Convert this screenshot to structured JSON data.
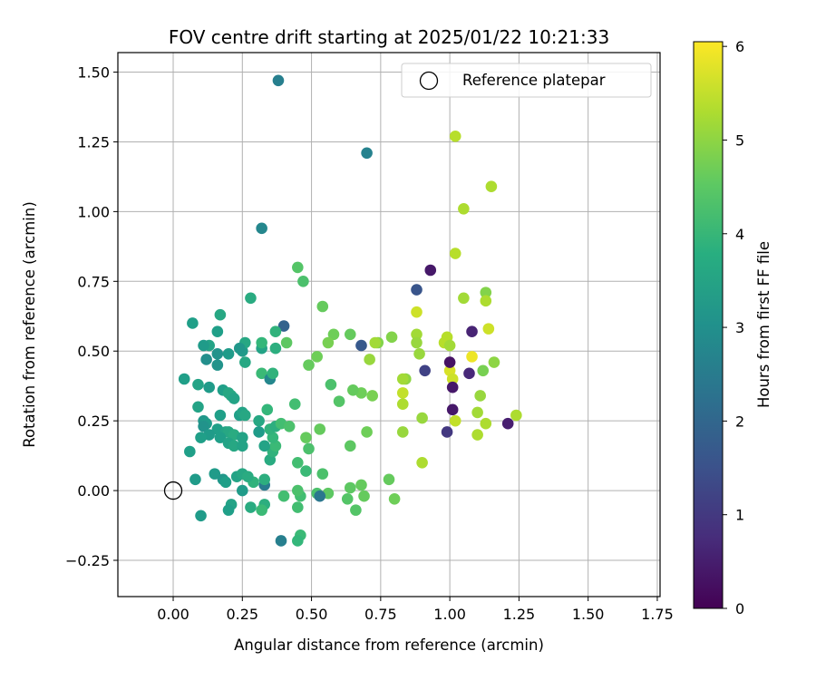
{
  "chart_data": {
    "type": "scatter",
    "title": "FOV centre drift starting at 2025/01/22 10:21:33",
    "xlabel": "Angular distance from reference (arcmin)",
    "ylabel": "Rotation from reference (arcmin)",
    "xlim": [
      -0.2,
      1.76
    ],
    "ylim": [
      -0.38,
      1.57
    ],
    "xticks": [
      0.0,
      0.25,
      0.5,
      0.75,
      1.0,
      1.25,
      1.5,
      1.75
    ],
    "xtick_labels": [
      "0.00",
      "0.25",
      "0.50",
      "0.75",
      "1.00",
      "1.25",
      "1.50",
      "1.75"
    ],
    "yticks": [
      -0.25,
      0.0,
      0.25,
      0.5,
      0.75,
      1.0,
      1.25,
      1.5
    ],
    "ytick_labels": [
      "−0.25",
      "0.00",
      "0.25",
      "0.50",
      "0.75",
      "1.00",
      "1.25",
      "1.50"
    ],
    "grid": true,
    "legend": {
      "position": "top-right",
      "entries": [
        "Reference platepar"
      ]
    },
    "reference_point": {
      "x": 0.0,
      "y": 0.0
    },
    "colorbar": {
      "label": "Hours from first FF file",
      "colormap": "viridis",
      "range": [
        0,
        6.05
      ],
      "ticks": [
        0,
        1,
        2,
        3,
        4,
        5,
        6
      ],
      "tick_labels": [
        "0",
        "1",
        "2",
        "3",
        "4",
        "5",
        "6"
      ]
    },
    "points": [
      {
        "x": 0.38,
        "y": 1.47,
        "h": 2.6
      },
      {
        "x": 0.7,
        "y": 1.21,
        "h": 2.7
      },
      {
        "x": 0.32,
        "y": 0.94,
        "h": 2.8
      },
      {
        "x": 0.88,
        "y": 0.72,
        "h": 1.6
      },
      {
        "x": 0.93,
        "y": 0.79,
        "h": 0.4
      },
      {
        "x": 0.4,
        "y": 0.59,
        "h": 1.9
      },
      {
        "x": 0.68,
        "y": 0.52,
        "h": 1.7
      },
      {
        "x": 1.02,
        "y": 1.27,
        "h": 5.4
      },
      {
        "x": 1.15,
        "y": 1.09,
        "h": 5.3
      },
      {
        "x": 1.05,
        "y": 1.01,
        "h": 5.3
      },
      {
        "x": 1.02,
        "y": 0.85,
        "h": 5.4
      },
      {
        "x": 1.05,
        "y": 0.69,
        "h": 5.2
      },
      {
        "x": 1.13,
        "y": 0.71,
        "h": 4.9
      },
      {
        "x": 1.13,
        "y": 0.68,
        "h": 5.3
      },
      {
        "x": 1.14,
        "y": 0.58,
        "h": 5.6
      },
      {
        "x": 1.16,
        "y": 0.46,
        "h": 5.0
      },
      {
        "x": 1.12,
        "y": 0.43,
        "h": 4.8
      },
      {
        "x": 1.11,
        "y": 0.34,
        "h": 5.1
      },
      {
        "x": 1.08,
        "y": 0.48,
        "h": 5.9
      },
      {
        "x": 1.07,
        "y": 0.42,
        "h": 0.7
      },
      {
        "x": 1.08,
        "y": 0.57,
        "h": 0.6
      },
      {
        "x": 0.99,
        "y": 0.55,
        "h": 5.4
      },
      {
        "x": 0.98,
        "y": 0.53,
        "h": 5.4
      },
      {
        "x": 1.0,
        "y": 0.52,
        "h": 5.2
      },
      {
        "x": 1.0,
        "y": 0.43,
        "h": 5.7
      },
      {
        "x": 1.01,
        "y": 0.4,
        "h": 5.6
      },
      {
        "x": 1.0,
        "y": 0.46,
        "h": 0.3
      },
      {
        "x": 1.01,
        "y": 0.37,
        "h": 0.4
      },
      {
        "x": 1.01,
        "y": 0.29,
        "h": 0.4
      },
      {
        "x": 1.02,
        "y": 0.25,
        "h": 5.5
      },
      {
        "x": 1.1,
        "y": 0.28,
        "h": 5.2
      },
      {
        "x": 1.13,
        "y": 0.24,
        "h": 5.3
      },
      {
        "x": 1.1,
        "y": 0.2,
        "h": 5.3
      },
      {
        "x": 0.99,
        "y": 0.21,
        "h": 1.0
      },
      {
        "x": 1.21,
        "y": 0.24,
        "h": 0.5
      },
      {
        "x": 1.24,
        "y": 0.27,
        "h": 5.3
      },
      {
        "x": 0.91,
        "y": 0.43,
        "h": 1.2
      },
      {
        "x": 0.9,
        "y": 0.26,
        "h": 5.1
      },
      {
        "x": 0.9,
        "y": 0.1,
        "h": 5.3
      },
      {
        "x": 0.88,
        "y": 0.64,
        "h": 5.6
      },
      {
        "x": 0.88,
        "y": 0.56,
        "h": 5.2
      },
      {
        "x": 0.88,
        "y": 0.53,
        "h": 5.1
      },
      {
        "x": 0.89,
        "y": 0.49,
        "h": 5.1
      },
      {
        "x": 0.84,
        "y": 0.4,
        "h": 5.0
      },
      {
        "x": 0.83,
        "y": 0.4,
        "h": 5.2
      },
      {
        "x": 0.83,
        "y": 0.35,
        "h": 5.5
      },
      {
        "x": 0.83,
        "y": 0.31,
        "h": 5.3
      },
      {
        "x": 0.83,
        "y": 0.21,
        "h": 5.1
      },
      {
        "x": 0.79,
        "y": 0.55,
        "h": 4.9
      },
      {
        "x": 0.74,
        "y": 0.53,
        "h": 4.9
      },
      {
        "x": 0.73,
        "y": 0.53,
        "h": 5.2
      },
      {
        "x": 0.71,
        "y": 0.47,
        "h": 5.1
      },
      {
        "x": 0.72,
        "y": 0.34,
        "h": 4.8
      },
      {
        "x": 0.68,
        "y": 0.35,
        "h": 4.7
      },
      {
        "x": 0.65,
        "y": 0.36,
        "h": 4.6
      },
      {
        "x": 0.64,
        "y": 0.56,
        "h": 4.6
      },
      {
        "x": 0.58,
        "y": 0.56,
        "h": 4.7
      },
      {
        "x": 0.56,
        "y": 0.53,
        "h": 4.8
      },
      {
        "x": 0.54,
        "y": 0.66,
        "h": 4.6
      },
      {
        "x": 0.45,
        "y": 0.8,
        "h": 4.4
      },
      {
        "x": 0.47,
        "y": 0.75,
        "h": 4.3
      },
      {
        "x": 0.52,
        "y": 0.48,
        "h": 4.7
      },
      {
        "x": 0.49,
        "y": 0.45,
        "h": 4.6
      },
      {
        "x": 0.57,
        "y": 0.38,
        "h": 4.3
      },
      {
        "x": 0.6,
        "y": 0.32,
        "h": 4.4
      },
      {
        "x": 0.53,
        "y": 0.22,
        "h": 4.6
      },
      {
        "x": 0.48,
        "y": 0.19,
        "h": 4.6
      },
      {
        "x": 0.49,
        "y": 0.15,
        "h": 4.3
      },
      {
        "x": 0.45,
        "y": 0.1,
        "h": 4.2
      },
      {
        "x": 0.48,
        "y": 0.07,
        "h": 4.1
      },
      {
        "x": 0.54,
        "y": 0.06,
        "h": 4.3
      },
      {
        "x": 0.64,
        "y": 0.16,
        "h": 4.5
      },
      {
        "x": 0.7,
        "y": 0.21,
        "h": 4.7
      },
      {
        "x": 0.78,
        "y": 0.04,
        "h": 4.6
      },
      {
        "x": 0.8,
        "y": -0.03,
        "h": 4.7
      },
      {
        "x": 0.68,
        "y": 0.02,
        "h": 4.6
      },
      {
        "x": 0.69,
        "y": -0.02,
        "h": 4.6
      },
      {
        "x": 0.64,
        "y": 0.01,
        "h": 4.5
      },
      {
        "x": 0.63,
        "y": -0.03,
        "h": 4.4
      },
      {
        "x": 0.66,
        "y": -0.07,
        "h": 4.4
      },
      {
        "x": 0.56,
        "y": -0.01,
        "h": 4.5
      },
      {
        "x": 0.52,
        "y": -0.01,
        "h": 4.3
      },
      {
        "x": 0.53,
        "y": -0.02,
        "h": 2.4
      },
      {
        "x": 0.46,
        "y": -0.02,
        "h": 4.2
      },
      {
        "x": 0.45,
        "y": 0.0,
        "h": 4.3
      },
      {
        "x": 0.4,
        "y": -0.02,
        "h": 4.2
      },
      {
        "x": 0.45,
        "y": -0.06,
        "h": 4.2
      },
      {
        "x": 0.46,
        "y": -0.16,
        "h": 4.1
      },
      {
        "x": 0.45,
        "y": -0.18,
        "h": 4.0
      },
      {
        "x": 0.39,
        "y": -0.18,
        "h": 2.6
      },
      {
        "x": 0.33,
        "y": -0.05,
        "h": 3.8
      },
      {
        "x": 0.28,
        "y": -0.06,
        "h": 3.7
      },
      {
        "x": 0.32,
        "y": -0.07,
        "h": 4.1
      },
      {
        "x": 0.33,
        "y": 0.02,
        "h": 2.5
      },
      {
        "x": 0.33,
        "y": 0.04,
        "h": 3.8
      },
      {
        "x": 0.29,
        "y": 0.03,
        "h": 3.9
      },
      {
        "x": 0.35,
        "y": 0.11,
        "h": 3.7
      },
      {
        "x": 0.36,
        "y": 0.14,
        "h": 3.9
      },
      {
        "x": 0.37,
        "y": 0.16,
        "h": 4.1
      },
      {
        "x": 0.33,
        "y": 0.16,
        "h": 3.5
      },
      {
        "x": 0.36,
        "y": 0.19,
        "h": 4.0
      },
      {
        "x": 0.35,
        "y": 0.22,
        "h": 3.9
      },
      {
        "x": 0.37,
        "y": 0.23,
        "h": 3.8
      },
      {
        "x": 0.39,
        "y": 0.24,
        "h": 4.2
      },
      {
        "x": 0.42,
        "y": 0.23,
        "h": 4.3
      },
      {
        "x": 0.34,
        "y": 0.29,
        "h": 4.0
      },
      {
        "x": 0.31,
        "y": 0.25,
        "h": 3.6
      },
      {
        "x": 0.31,
        "y": 0.21,
        "h": 3.3
      },
      {
        "x": 0.32,
        "y": 0.42,
        "h": 4.1
      },
      {
        "x": 0.35,
        "y": 0.4,
        "h": 2.8
      },
      {
        "x": 0.36,
        "y": 0.42,
        "h": 3.9
      },
      {
        "x": 0.32,
        "y": 0.51,
        "h": 3.5
      },
      {
        "x": 0.32,
        "y": 0.53,
        "h": 4.0
      },
      {
        "x": 0.37,
        "y": 0.51,
        "h": 3.8
      },
      {
        "x": 0.37,
        "y": 0.57,
        "h": 3.9
      },
      {
        "x": 0.41,
        "y": 0.53,
        "h": 4.5
      },
      {
        "x": 0.44,
        "y": 0.31,
        "h": 4.2
      },
      {
        "x": 0.28,
        "y": 0.69,
        "h": 3.7
      },
      {
        "x": 0.17,
        "y": 0.63,
        "h": 3.6
      },
      {
        "x": 0.07,
        "y": 0.6,
        "h": 3.4
      },
      {
        "x": 0.16,
        "y": 0.57,
        "h": 3.4
      },
      {
        "x": 0.13,
        "y": 0.52,
        "h": 3.5
      },
      {
        "x": 0.11,
        "y": 0.52,
        "h": 3.3
      },
      {
        "x": 0.16,
        "y": 0.49,
        "h": 3.1
      },
      {
        "x": 0.2,
        "y": 0.49,
        "h": 3.3
      },
      {
        "x": 0.16,
        "y": 0.45,
        "h": 3.1
      },
      {
        "x": 0.12,
        "y": 0.47,
        "h": 3.0
      },
      {
        "x": 0.25,
        "y": 0.5,
        "h": 3.3
      },
      {
        "x": 0.26,
        "y": 0.46,
        "h": 3.6
      },
      {
        "x": 0.26,
        "y": 0.53,
        "h": 3.6
      },
      {
        "x": 0.24,
        "y": 0.51,
        "h": 3.2
      },
      {
        "x": 0.04,
        "y": 0.4,
        "h": 3.4
      },
      {
        "x": 0.09,
        "y": 0.38,
        "h": 3.5
      },
      {
        "x": 0.13,
        "y": 0.37,
        "h": 3.3
      },
      {
        "x": 0.18,
        "y": 0.36,
        "h": 3.4
      },
      {
        "x": 0.2,
        "y": 0.35,
        "h": 3.6
      },
      {
        "x": 0.21,
        "y": 0.34,
        "h": 3.6
      },
      {
        "x": 0.22,
        "y": 0.33,
        "h": 3.5
      },
      {
        "x": 0.09,
        "y": 0.3,
        "h": 3.5
      },
      {
        "x": 0.17,
        "y": 0.27,
        "h": 3.4
      },
      {
        "x": 0.24,
        "y": 0.27,
        "h": 3.4
      },
      {
        "x": 0.25,
        "y": 0.28,
        "h": 3.5
      },
      {
        "x": 0.26,
        "y": 0.27,
        "h": 3.6
      },
      {
        "x": 0.11,
        "y": 0.25,
        "h": 3.2
      },
      {
        "x": 0.12,
        "y": 0.24,
        "h": 3.3
      },
      {
        "x": 0.11,
        "y": 0.23,
        "h": 3.1
      },
      {
        "x": 0.16,
        "y": 0.22,
        "h": 3.4
      },
      {
        "x": 0.19,
        "y": 0.21,
        "h": 3.5
      },
      {
        "x": 0.2,
        "y": 0.21,
        "h": 3.6
      },
      {
        "x": 0.22,
        "y": 0.2,
        "h": 3.7
      },
      {
        "x": 0.25,
        "y": 0.19,
        "h": 3.5
      },
      {
        "x": 0.17,
        "y": 0.19,
        "h": 3.4
      },
      {
        "x": 0.13,
        "y": 0.2,
        "h": 3.3
      },
      {
        "x": 0.1,
        "y": 0.19,
        "h": 3.4
      },
      {
        "x": 0.2,
        "y": 0.17,
        "h": 3.5
      },
      {
        "x": 0.22,
        "y": 0.16,
        "h": 3.6
      },
      {
        "x": 0.25,
        "y": 0.16,
        "h": 3.5
      },
      {
        "x": 0.06,
        "y": 0.14,
        "h": 3.4
      },
      {
        "x": 0.08,
        "y": 0.04,
        "h": 3.3
      },
      {
        "x": 0.15,
        "y": 0.06,
        "h": 3.3
      },
      {
        "x": 0.18,
        "y": 0.04,
        "h": 3.2
      },
      {
        "x": 0.19,
        "y": 0.03,
        "h": 3.4
      },
      {
        "x": 0.23,
        "y": 0.05,
        "h": 3.5
      },
      {
        "x": 0.25,
        "y": 0.06,
        "h": 3.6
      },
      {
        "x": 0.25,
        "y": 0.0,
        "h": 3.3
      },
      {
        "x": 0.27,
        "y": 0.05,
        "h": 3.7
      },
      {
        "x": 0.21,
        "y": -0.05,
        "h": 3.5
      },
      {
        "x": 0.2,
        "y": -0.07,
        "h": 3.4
      },
      {
        "x": 0.1,
        "y": -0.09,
        "h": 3.3
      }
    ]
  }
}
